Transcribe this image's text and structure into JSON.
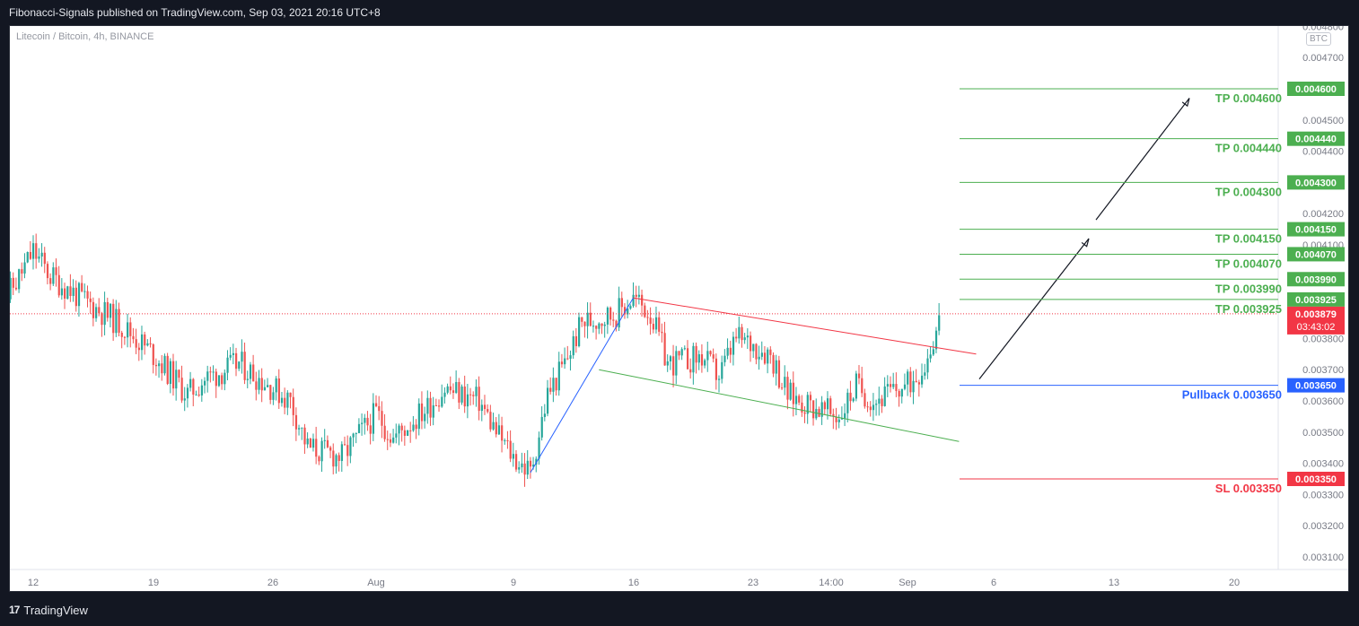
{
  "header": {
    "published": "Fibonacci-Signals published on TradingView.com, Sep 03, 2021 20:16 UTC+8"
  },
  "chart_data": {
    "type": "candlestick",
    "symbol": "Litecoin / Bitcoin, 4h, BINANCE",
    "currency": "BTC",
    "y_ticks": [
      "0.004800",
      "0.004700",
      "0.004600",
      "0.004500",
      "0.004400",
      "0.004300",
      "0.004200",
      "0.004100",
      "0.003800",
      "0.003700",
      "0.003600",
      "0.003500",
      "0.003400",
      "0.003300",
      "0.003200",
      "0.003100"
    ],
    "x_ticks": [
      "12",
      "19",
      "26",
      "Aug",
      "9",
      "16",
      "23",
      "14:00",
      "Sep",
      "6",
      "13",
      "20"
    ],
    "last_price": {
      "value": "0.003879",
      "countdown": "03:43:02",
      "color": "#f23645"
    },
    "levels": [
      {
        "value": "0.004600",
        "label": "TP 0.004600",
        "color": "#4caf50"
      },
      {
        "value": "0.004440",
        "label": "TP 0.004440",
        "color": "#4caf50"
      },
      {
        "value": "0.004300",
        "label": "TP 0.004300",
        "color": "#4caf50"
      },
      {
        "value": "0.004150",
        "label": "TP 0.004150",
        "color": "#4caf50"
      },
      {
        "value": "0.004070",
        "label": "TP 0.004070",
        "color": "#4caf50"
      },
      {
        "value": "0.003990",
        "label": "TP 0.003990",
        "color": "#4caf50"
      },
      {
        "value": "0.003925",
        "label": "TP 0.003925",
        "color": "#4caf50"
      },
      {
        "value": "0.003650",
        "label": "Pullback 0.003650",
        "color": "#2962ff"
      },
      {
        "value": "0.003350",
        "label": "SL 0.003350",
        "color": "#f23645"
      }
    ],
    "price_path": [
      [
        "2021-07-10",
        0.0039
      ],
      [
        "2021-07-11",
        0.00398
      ],
      [
        "2021-07-12",
        0.00408
      ],
      [
        "2021-07-13",
        0.004
      ],
      [
        "2021-07-15",
        0.00392
      ],
      [
        "2021-07-17",
        0.00385
      ],
      [
        "2021-07-19",
        0.00375
      ],
      [
        "2021-07-21",
        0.00362
      ],
      [
        "2021-07-22",
        0.00367
      ],
      [
        "2021-07-24",
        0.00372
      ],
      [
        "2021-07-25",
        0.00368
      ],
      [
        "2021-07-27",
        0.0036
      ],
      [
        "2021-07-28",
        0.00345
      ],
      [
        "2021-07-30",
        0.00342
      ],
      [
        "2021-08-01",
        0.00356
      ],
      [
        "2021-08-02",
        0.00348
      ],
      [
        "2021-08-04",
        0.00358
      ],
      [
        "2021-08-05",
        0.00364
      ],
      [
        "2021-08-07",
        0.0036
      ],
      [
        "2021-08-08",
        0.0035
      ],
      [
        "2021-08-09",
        0.00342
      ],
      [
        "2021-08-10",
        0.00337
      ],
      [
        "2021-08-11",
        0.00362
      ],
      [
        "2021-08-12",
        0.00372
      ],
      [
        "2021-08-13",
        0.00385
      ],
      [
        "2021-08-15",
        0.00388
      ],
      [
        "2021-08-16",
        0.00393
      ],
      [
        "2021-08-17",
        0.00388
      ],
      [
        "2021-08-18",
        0.00372
      ],
      [
        "2021-08-20",
        0.00374
      ],
      [
        "2021-08-21",
        0.00368
      ],
      [
        "2021-08-22",
        0.0038
      ],
      [
        "2021-08-23",
        0.00378
      ],
      [
        "2021-08-24",
        0.00375
      ],
      [
        "2021-08-25",
        0.00362
      ],
      [
        "2021-08-27",
        0.00357
      ],
      [
        "2021-08-28",
        0.00355
      ],
      [
        "2021-08-29",
        0.00365
      ],
      [
        "2021-08-30",
        0.0036
      ],
      [
        "2021-09-01",
        0.00365
      ],
      [
        "2021-09-02",
        0.00372
      ],
      [
        "2021-09-03",
        0.00388
      ]
    ],
    "colors": {
      "up": "#26a69a",
      "down": "#ef5350"
    }
  },
  "footer": {
    "brand": "TradingView",
    "logo_text": "17"
  }
}
